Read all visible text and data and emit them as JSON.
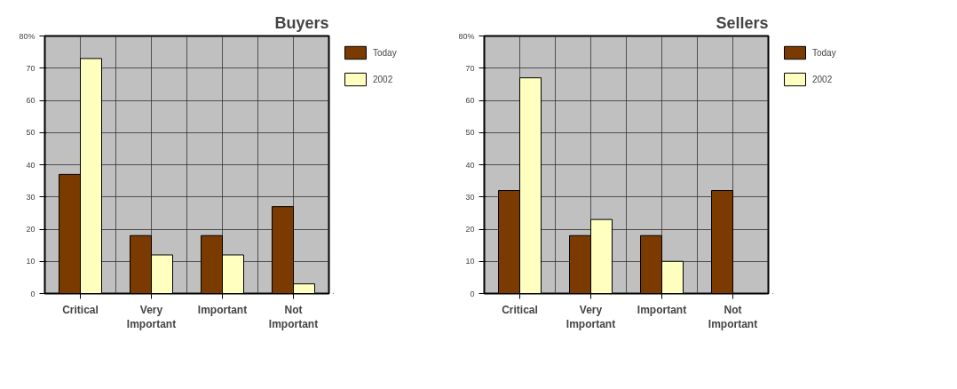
{
  "chart_data": [
    {
      "type": "bar",
      "title": "Buyers",
      "categories": [
        "Critical",
        "Very Important",
        "Important",
        "Not Important"
      ],
      "series": [
        {
          "name": "Today",
          "color": "#7a3a00",
          "values": [
            37,
            18,
            18,
            27
          ]
        },
        {
          "name": "2002",
          "color": "#ffffc0",
          "values": [
            73,
            12,
            12,
            3
          ]
        }
      ],
      "ylim": [
        0,
        80
      ],
      "yticks": [
        0,
        10,
        20,
        30,
        40,
        50,
        60,
        70,
        {
          "value": 80,
          "label": "80%"
        }
      ],
      "grid": true,
      "legend": "right"
    },
    {
      "type": "bar",
      "title": "Sellers",
      "categories": [
        "Critical",
        "Very Important",
        "Important",
        "Not Important"
      ],
      "series": [
        {
          "name": "Today",
          "color": "#7a3a00",
          "values": [
            32,
            18,
            18,
            32
          ]
        },
        {
          "name": "2002",
          "color": "#ffffc0",
          "values": [
            67,
            23,
            10,
            null
          ]
        }
      ],
      "ylim": [
        0,
        80
      ],
      "yticks": [
        0,
        10,
        20,
        30,
        40,
        50,
        60,
        70,
        {
          "value": 80,
          "label": "80%"
        }
      ],
      "grid": true,
      "legend": "right"
    }
  ]
}
